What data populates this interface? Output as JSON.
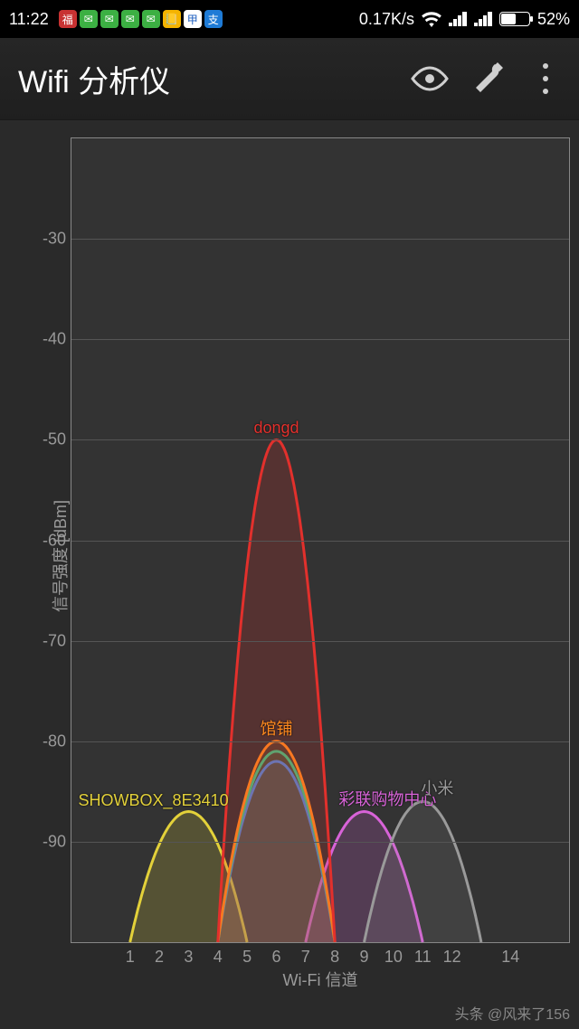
{
  "status_bar": {
    "time": "11:22",
    "data_rate": "0.17K/s",
    "battery_pct": "52%",
    "battery_fill": 52,
    "notif_icons": [
      {
        "bg": "#c83232",
        "glyph": "福"
      },
      {
        "bg": "#3cb043",
        "glyph": "✉"
      },
      {
        "bg": "#3cb043",
        "glyph": "✉"
      },
      {
        "bg": "#3cb043",
        "glyph": "✉"
      },
      {
        "bg": "#3cb043",
        "glyph": "✉"
      },
      {
        "bg": "#f5b400",
        "glyph": "📒"
      },
      {
        "bg": "#ffffff",
        "glyph": "甲"
      },
      {
        "bg": "#1e7bd6",
        "glyph": "支"
      }
    ]
  },
  "app_bar": {
    "title": "Wifi 分析仪"
  },
  "chart": {
    "type": "wifi-parabola",
    "background_color": "#333333",
    "grid_color": "#555555",
    "border_color": "#888888",
    "ylabel": "信号强度 [dBm]",
    "xlabel": "Wi-Fi 信道",
    "ylim": [
      -100,
      -20
    ],
    "yticks": [
      -30,
      -40,
      -50,
      -60,
      -70,
      -80,
      -90
    ],
    "xlim": [
      -1,
      16
    ],
    "xticks": [
      1,
      2,
      3,
      4,
      5,
      6,
      7,
      8,
      9,
      10,
      11,
      12,
      14
    ],
    "curve_halfwidth": 2.0,
    "label_fontsize": 18,
    "networks": [
      {
        "ssid": "dongd",
        "channel": 6,
        "dbm": -50,
        "color": "#e2302c",
        "fill": "#e2302c33"
      },
      {
        "ssid": "SHOWBOX_8E3410",
        "channel": 3,
        "dbm": -87,
        "color": "#e3d13a",
        "fill": "#e3d13a33",
        "label_dx": -1.2
      },
      {
        "ssid": "馆铺",
        "channel": 6,
        "dbm": -80,
        "color": "#ff8a1e",
        "fill": "#ff8a1e22"
      },
      {
        "ssid": "",
        "channel": 6,
        "dbm": -81,
        "color": "#23c98f",
        "fill": "#23c98f22"
      },
      {
        "ssid": "",
        "channel": 6,
        "dbm": -82,
        "color": "#3a7bff",
        "fill": "#3a7bff22"
      },
      {
        "ssid": "彩联购物中心",
        "channel": 9,
        "dbm": -87,
        "color": "#d863d8",
        "fill": "#d863d833",
        "label_dx": 0.8
      },
      {
        "ssid": "小米",
        "channel": 11,
        "dbm": -86,
        "color": "#9a9a9a",
        "fill": "#9a9a9a22",
        "label_dx": 0.5
      }
    ]
  },
  "watermark": "头条 @风来了156"
}
